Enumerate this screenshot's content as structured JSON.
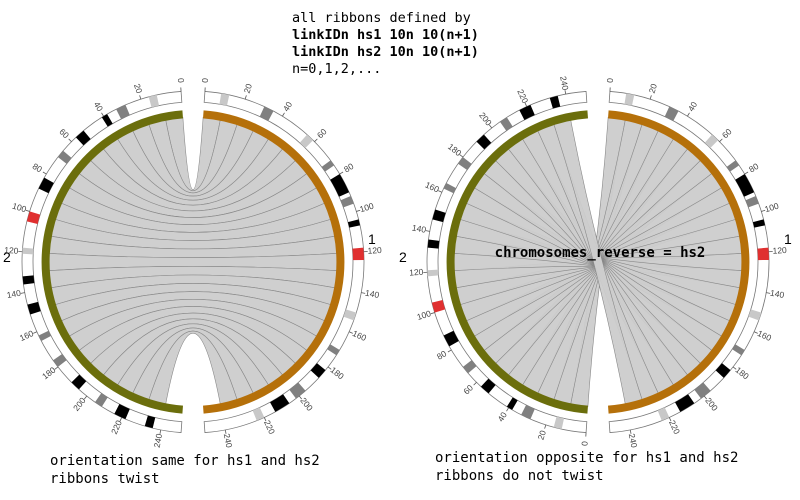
{
  "header": {
    "line1": "all ribbons defined by",
    "line2": "linkIDn hs1 10n 10(n+1)",
    "line3": "linkIDn hs2 10n 10(n+1)",
    "line4": "n=0,1,2,..."
  },
  "left_panel": {
    "chr1_label": "1",
    "chr2_label": "2",
    "caption_line1": "orientation same for hs1 and hs2",
    "caption_line2": "ribbons twist"
  },
  "right_panel": {
    "chr1_label": "1",
    "chr2_label": "2",
    "center_label": "chromosomes_reverse = hs2",
    "caption_line1": "orientation opposite for hs1 and hs2",
    "caption_line2": "ribbons do not twist"
  },
  "ticks": {
    "hs1": [
      "0",
      "20",
      "40",
      "60",
      "80",
      "100",
      "120",
      "140",
      "160",
      "180",
      "200",
      "220",
      "240"
    ],
    "hs2": [
      "0",
      "20",
      "40",
      "60",
      "80",
      "100",
      "120",
      "140",
      "160",
      "180",
      "200",
      "220",
      "240"
    ]
  },
  "colors": {
    "hs1_ideogram": "#b5700a",
    "hs2_ideogram": "#6b6e0c",
    "ribbon_fill": "#cccccc",
    "ribbon_stroke": "#888888",
    "band_dark": "#000000",
    "band_mid": "#808080",
    "band_light": "#c8c8c8",
    "band_red": "#e03030"
  }
}
